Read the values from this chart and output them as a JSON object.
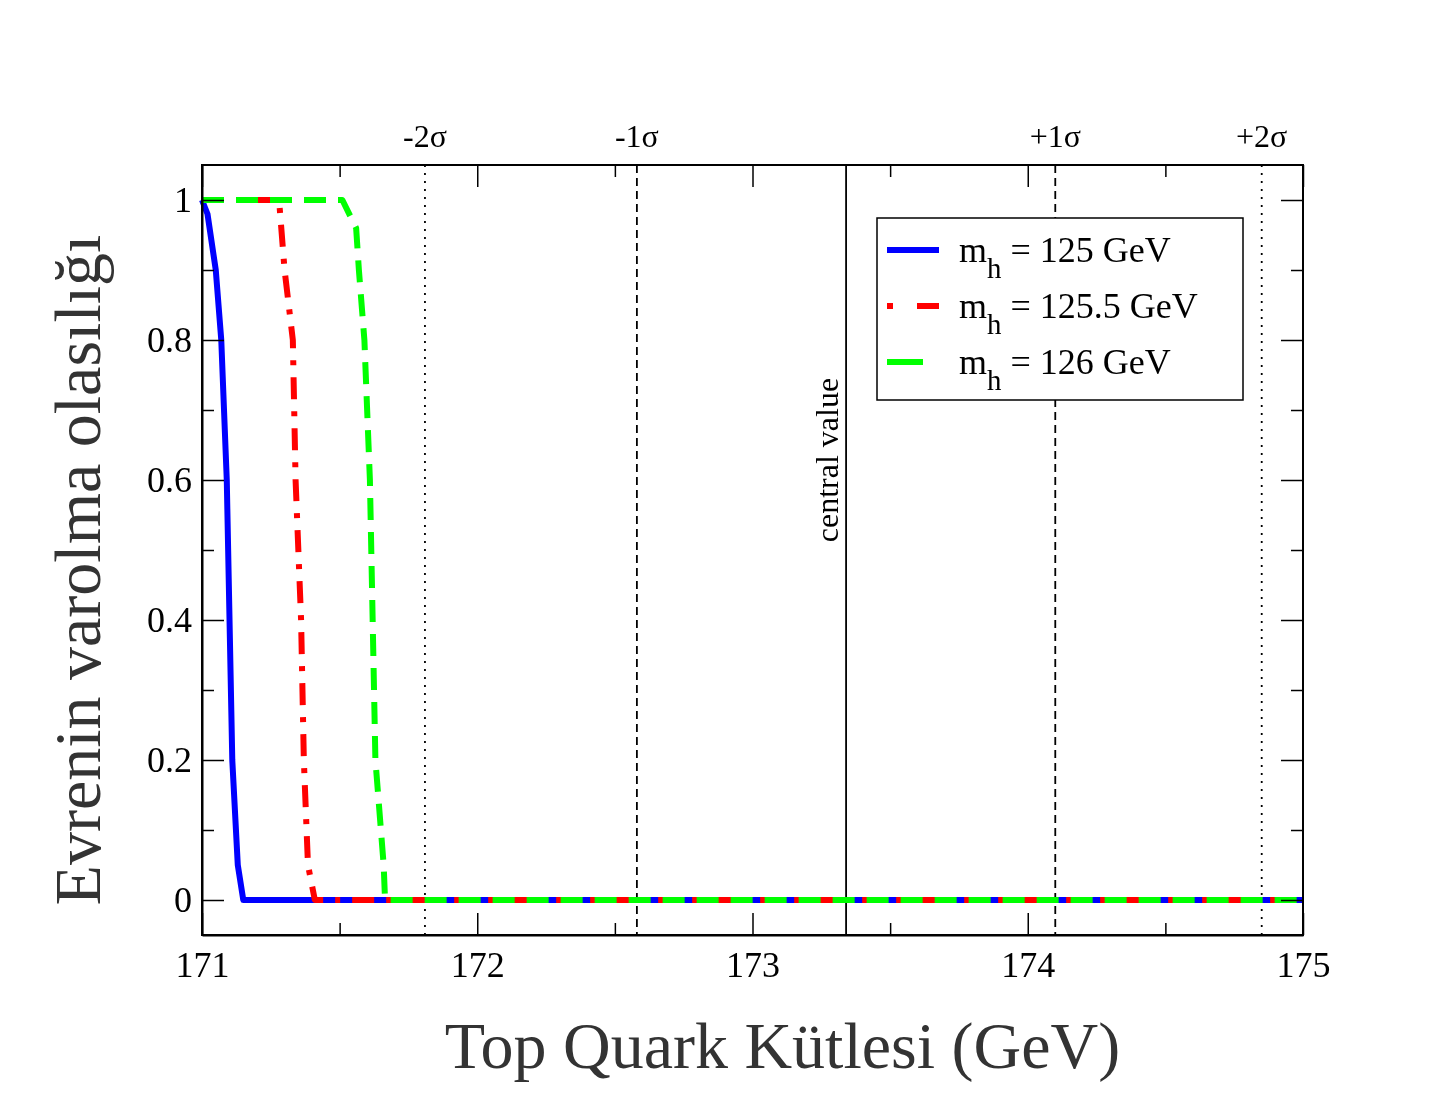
{
  "chart_data": {
    "type": "line",
    "xlabel": "Top Quark Kütlesi (GeV)",
    "ylabel": "Evrenin varolma olasılığı",
    "xlim": [
      171,
      175
    ],
    "ylim": [
      -0.05,
      1.05
    ],
    "xticks": [
      171,
      {
        "value": 171.5,
        "label": null
      },
      172,
      {
        "value": 172.5,
        "label": null
      },
      173,
      {
        "value": 173.5,
        "label": null
      },
      174,
      {
        "value": 174.5,
        "label": null
      },
      175
    ],
    "yticks": [
      0,
      {
        "value": 0.1,
        "label": null
      },
      0.2,
      {
        "value": 0.3,
        "label": null
      },
      0.4,
      {
        "value": 0.5,
        "label": null
      },
      0.6,
      {
        "value": 0.7,
        "label": null
      },
      0.8,
      {
        "value": 0.9,
        "label": null
      },
      1
    ],
    "grid": false,
    "legend": "top right",
    "marker": "none",
    "series": [
      {
        "name": "m$_{h}$ = 125 GeV",
        "color": "#0000ff",
        "line_style": "solid",
        "x": [
          171,
          171.02,
          171.05,
          171.07,
          171.09,
          171.1,
          171.11,
          171.13,
          171.15,
          175
        ],
        "values": [
          1,
          0.98,
          0.9,
          0.8,
          0.6,
          0.4,
          0.2,
          0.05,
          0,
          0
        ]
      },
      {
        "name": "m$_{h}$ = 125.5 GeV",
        "color": "#ff0000",
        "line_style": "dashdot",
        "x": [
          171,
          171.28,
          171.3,
          171.33,
          171.34,
          171.36,
          171.37,
          171.385,
          171.41,
          175
        ],
        "values": [
          1,
          1,
          0.9,
          0.8,
          0.6,
          0.4,
          0.2,
          0.05,
          0,
          0
        ]
      },
      {
        "name": "m$_{h}$ = 126 GeV",
        "color": "#00ff00",
        "line_style": "dashed",
        "x": [
          171,
          171.51,
          171.56,
          171.57,
          171.59,
          171.61,
          171.62,
          171.63,
          171.66,
          171.665,
          175
        ],
        "values": [
          1,
          1,
          0.96,
          0.9,
          0.8,
          0.6,
          0.4,
          0.2,
          0.05,
          0,
          0
        ]
      }
    ],
    "ref_lines": [
      {
        "axis": "x",
        "value": 171.81,
        "label": "-2σ",
        "line_style": "dotted",
        "color": "#000000"
      },
      {
        "axis": "x",
        "value": 172.58,
        "label": "-1σ",
        "line_style": "dashed",
        "color": "#000000"
      },
      {
        "axis": "x",
        "value": 173.34,
        "label": "central value",
        "line_style": "solid",
        "color": "#000000"
      },
      {
        "axis": "x",
        "value": 174.1,
        "label": "+1σ",
        "line_style": "dashed",
        "color": "#000000"
      },
      {
        "axis": "x",
        "value": 174.85,
        "label": "+2σ",
        "line_style": "dotted",
        "color": "#000000"
      }
    ]
  }
}
